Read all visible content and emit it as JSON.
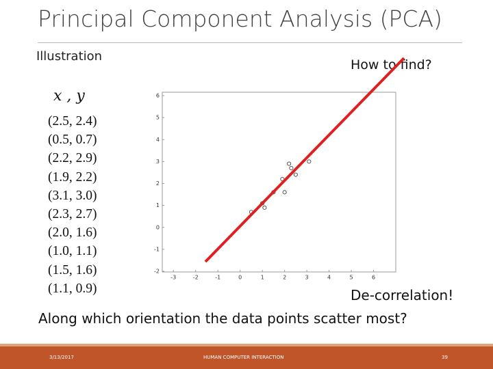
{
  "header": {
    "title": "Principal Component Analysis (PCA)"
  },
  "subtitle": "Illustration",
  "note": "How to find?",
  "list_header": "x , y",
  "points": [
    "(2.5, 2.4)",
    "(0.5, 0.7)",
    "(2.2, 2.9)",
    "(1.9, 2.2)",
    "(3.1, 3.0)",
    "(2.3, 2.7)",
    "(2.0, 1.6)",
    "(1.0, 1.1)",
    "(1.5, 1.6)",
    "(1.1, 0.9)"
  ],
  "chart_data": {
    "type": "scatter",
    "x": [
      2.5,
      0.5,
      2.2,
      1.9,
      3.1,
      2.3,
      2.0,
      1.0,
      1.5,
      1.1
    ],
    "y": [
      2.4,
      0.7,
      2.9,
      2.2,
      3.0,
      2.7,
      1.6,
      1.1,
      1.6,
      0.9
    ],
    "xlim": [
      -3.5,
      7
    ],
    "ylim": [
      -2,
      6
    ],
    "xticks": [
      -3,
      -2,
      -1,
      0,
      1,
      2,
      3,
      4,
      5,
      6
    ],
    "yticks": [
      -2,
      -1,
      0,
      1,
      2,
      3,
      4,
      5,
      6
    ],
    "color": "#444444"
  },
  "caption": "De-correlation!",
  "question": "Along which orientation the data points scatter most?",
  "footer": {
    "date": "3/13/2017",
    "center": "HUMAN COMPUTER INTERACTION",
    "page": "39"
  }
}
